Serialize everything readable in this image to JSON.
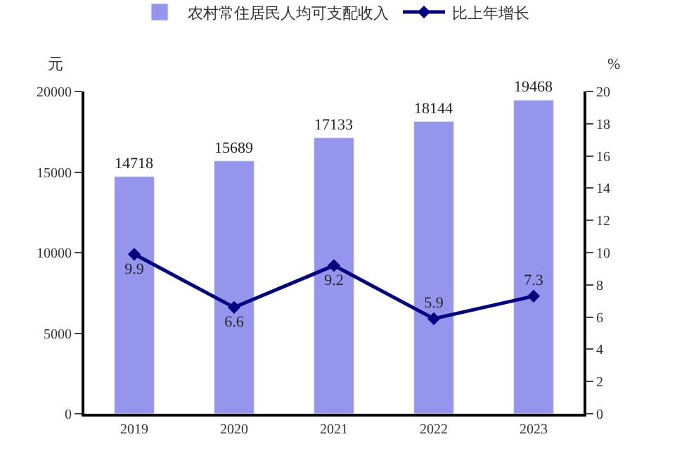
{
  "chart_data": {
    "type": "bar",
    "categories": [
      "2019",
      "2020",
      "2021",
      "2022",
      "2023"
    ],
    "ylabel": "元",
    "y2label": "%",
    "series": [
      {
        "name": "农村常住居民人均可支配收入",
        "color": "#9595ee",
        "values": [
          14718,
          15689,
          17133,
          18144,
          19468
        ],
        "value_labels": [
          "14718",
          "15689",
          "17133",
          "18144",
          "19468"
        ]
      },
      {
        "name": "比上年增长",
        "type": "line",
        "axis": "y2",
        "color": "#000080",
        "marker": "diamond",
        "values": [
          9.9,
          6.6,
          9.2,
          5.9,
          7.3
        ]
      }
    ],
    "ylim": [
      0,
      20000
    ],
    "yticks": [
      0,
      5000,
      10000,
      15000,
      20000
    ],
    "y2lim": [
      0,
      20
    ],
    "y2ticks": [
      0,
      2,
      4,
      6,
      8,
      10,
      12,
      14,
      16,
      18,
      20
    ],
    "data_labels": true,
    "legend": "top"
  }
}
